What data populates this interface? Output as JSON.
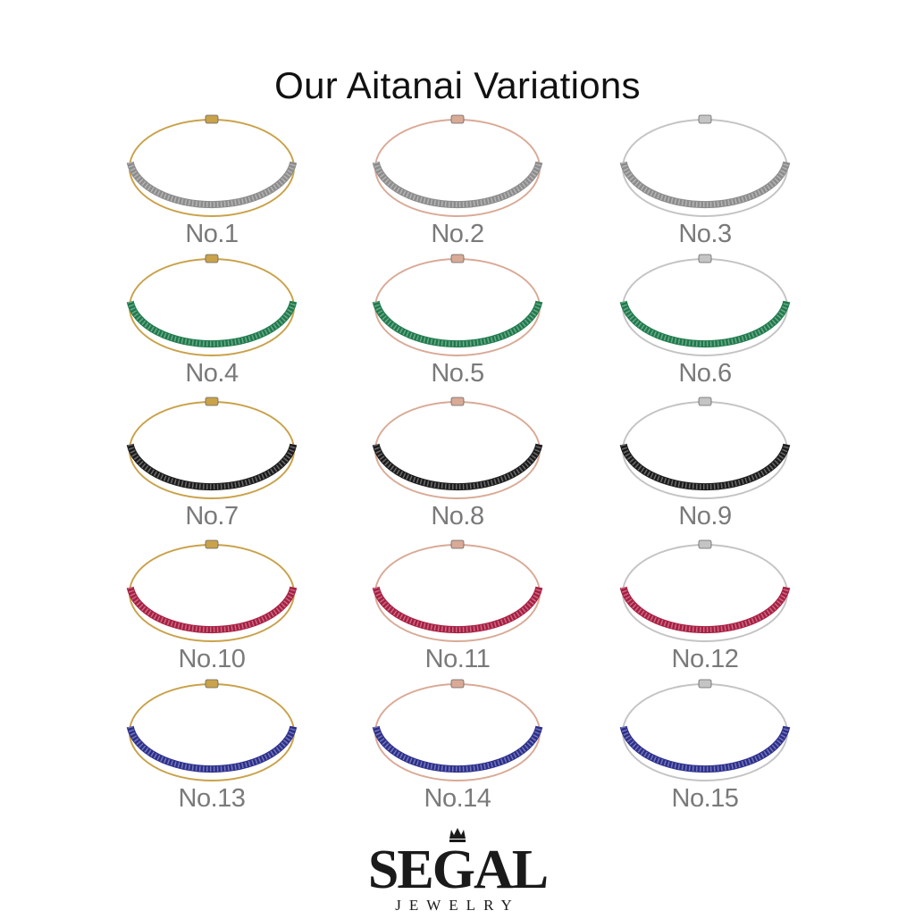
{
  "title": "Our Aitanai Variations",
  "metals": {
    "yellow": "#c9a24a",
    "rose": "#d9aa96",
    "white": "#c4c4c4"
  },
  "stones": {
    "diamond": "#8c8c8c",
    "emerald": "#1f7a4c",
    "black": "#1c1c1c",
    "ruby": "#a81e42",
    "sapphire": "#2c2f8c"
  },
  "variations": [
    {
      "label": "No.1",
      "metal": "yellow",
      "stone": "diamond"
    },
    {
      "label": "No.2",
      "metal": "rose",
      "stone": "diamond"
    },
    {
      "label": "No.3",
      "metal": "white",
      "stone": "diamond"
    },
    {
      "label": "No.4",
      "metal": "yellow",
      "stone": "emerald"
    },
    {
      "label": "No.5",
      "metal": "rose",
      "stone": "emerald"
    },
    {
      "label": "No.6",
      "metal": "white",
      "stone": "emerald"
    },
    {
      "label": "No.7",
      "metal": "yellow",
      "stone": "black"
    },
    {
      "label": "No.8",
      "metal": "rose",
      "stone": "black"
    },
    {
      "label": "No.9",
      "metal": "white",
      "stone": "black"
    },
    {
      "label": "No.10",
      "metal": "yellow",
      "stone": "ruby"
    },
    {
      "label": "No.11",
      "metal": "rose",
      "stone": "ruby"
    },
    {
      "label": "No.12",
      "metal": "white",
      "stone": "ruby"
    },
    {
      "label": "No.13",
      "metal": "yellow",
      "stone": "sapphire"
    },
    {
      "label": "No.14",
      "metal": "rose",
      "stone": "sapphire"
    },
    {
      "label": "No.15",
      "metal": "white",
      "stone": "sapphire"
    }
  ],
  "logo": {
    "name": "SEGAL",
    "sub": "JEWELRY"
  }
}
